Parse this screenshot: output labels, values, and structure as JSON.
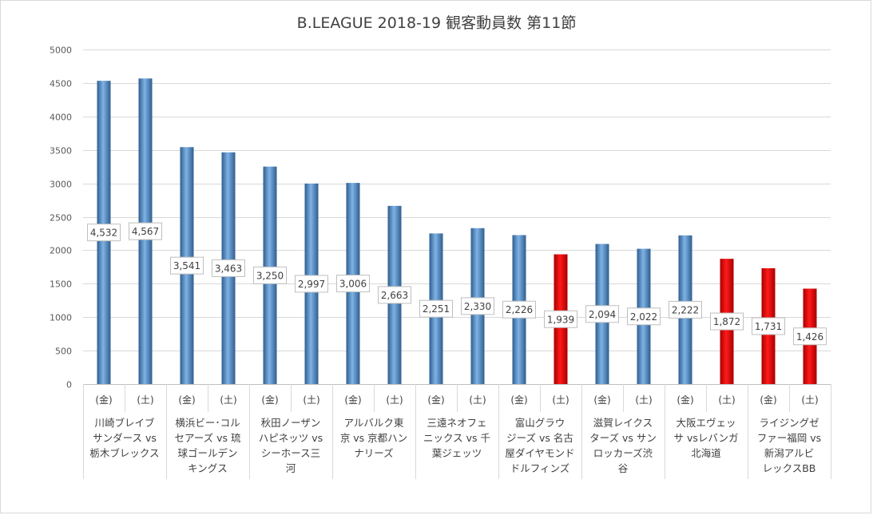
{
  "chart_data": {
    "type": "bar",
    "title": "B.LEAGUE 2018-19 観客動員数 第11節",
    "ylim": [
      0,
      5000
    ],
    "yticks": [
      0,
      500,
      1000,
      1500,
      2000,
      2500,
      3000,
      3500,
      4000,
      4500,
      5000
    ],
    "grid": true,
    "legend": "none",
    "groups": [
      {
        "label": "川崎ブレイブサンダース vs 栃木ブレックス",
        "lines": [
          "川崎ブレイブ",
          "サンダース vs",
          "栃木ブレックス"
        ]
      },
      {
        "label": "横浜ビー･コルセアーズ vs 琉球ゴールデンキングス",
        "lines": [
          "横浜ビー･コル",
          "セアーズ vs 琉",
          "球ゴールデン",
          "キングス"
        ]
      },
      {
        "label": "秋田ノーザンハピネッツ vs シーホース三河",
        "lines": [
          "秋田ノーザン",
          "ハピネッツ vs",
          "シーホース三",
          "河"
        ]
      },
      {
        "label": "アルバルク東京 vs 京都ハンナリーズ",
        "lines": [
          "アルバルク東",
          "京 vs 京都ハン",
          "ナリーズ"
        ]
      },
      {
        "label": "三遠ネオフェニックス vs 千葉ジェッツ",
        "lines": [
          "三遠ネオフェ",
          "ニックス vs 千",
          "葉ジェッツ"
        ]
      },
      {
        "label": "富山グラウジーズ vs 名古屋ダイヤモンドドルフィンズ",
        "lines": [
          "富山グラウ",
          "ジーズ vs 名古",
          "屋ダイヤモンド",
          "ドルフィンズ"
        ]
      },
      {
        "label": "滋賀レイクスターズ vs サンロッカーズ渋谷",
        "lines": [
          "滋賀レイクス",
          "ターズ vs サン",
          "ロッカーズ渋",
          "谷"
        ]
      },
      {
        "label": "大阪エヴェッサ vs レバンガ北海道",
        "lines": [
          "大阪エヴェッ",
          "サ vsレバンガ",
          "北海道"
        ]
      },
      {
        "label": "ライジングゼファー福岡 vs 新潟アルビレックスBB",
        "lines": [
          "ライジングゼ",
          "ファー福岡 vs",
          "新潟アルビ",
          "レックスBB"
        ]
      }
    ],
    "bars": [
      {
        "day": "(金)",
        "value": 4532,
        "label": "4,532",
        "color": "#5B9BD5"
      },
      {
        "day": "(土)",
        "value": 4567,
        "label": "4,567",
        "color": "#5B9BD5"
      },
      {
        "day": "(金)",
        "value": 3541,
        "label": "3,541",
        "color": "#5B9BD5"
      },
      {
        "day": "(土)",
        "value": 3463,
        "label": "3,463",
        "color": "#5B9BD5"
      },
      {
        "day": "(金)",
        "value": 3250,
        "label": "3,250",
        "color": "#5B9BD5"
      },
      {
        "day": "(土)",
        "value": 2997,
        "label": "2,997",
        "color": "#5B9BD5"
      },
      {
        "day": "(金)",
        "value": 3006,
        "label": "3,006",
        "color": "#5B9BD5"
      },
      {
        "day": "(土)",
        "value": 2663,
        "label": "2,663",
        "color": "#5B9BD5"
      },
      {
        "day": "(金)",
        "value": 2251,
        "label": "2,251",
        "color": "#5B9BD5"
      },
      {
        "day": "(土)",
        "value": 2330,
        "label": "2,330",
        "color": "#5B9BD5"
      },
      {
        "day": "(金)",
        "value": 2226,
        "label": "2,226",
        "color": "#5B9BD5"
      },
      {
        "day": "(土)",
        "value": 1939,
        "label": "1,939",
        "color": "#FF0000"
      },
      {
        "day": "(金)",
        "value": 2094,
        "label": "2,094",
        "color": "#5B9BD5"
      },
      {
        "day": "(土)",
        "value": 2022,
        "label": "2,022",
        "color": "#5B9BD5"
      },
      {
        "day": "(金)",
        "value": 2222,
        "label": "2,222",
        "color": "#5B9BD5"
      },
      {
        "day": "(土)",
        "value": 1872,
        "label": "1,872",
        "color": "#FF0000"
      },
      {
        "day": "(金)",
        "value": 1731,
        "label": "1,731",
        "color": "#FF0000"
      },
      {
        "day": "(土)",
        "value": 1426,
        "label": "1,426",
        "color": "#FF0000"
      }
    ]
  }
}
